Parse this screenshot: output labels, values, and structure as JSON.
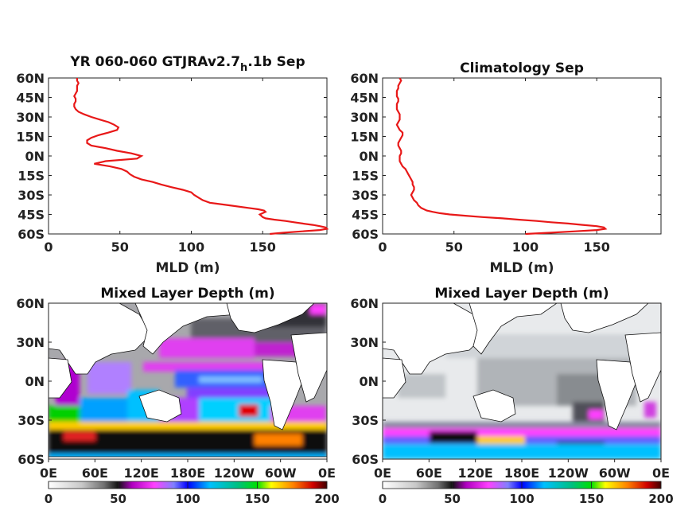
{
  "chart_data": [
    {
      "type": "line",
      "title": "YR 060-060 GTJRAv2.7",
      "title_sub": "h",
      "title_suffix": ".1b Sep",
      "xlabel": "MLD (m)",
      "ylabel": "",
      "xlim": [
        0,
        195
      ],
      "ylim": [
        -60,
        60
      ],
      "xticks": [
        "0",
        "50",
        "100",
        "150"
      ],
      "yticks": [
        "60N",
        "45N",
        "30N",
        "15N",
        "0N",
        "15S",
        "30S",
        "45S",
        "60S"
      ],
      "line_color": "#e81818",
      "series": [
        {
          "lat": [
            -60,
            -59,
            -58,
            -57,
            -56,
            -55,
            -54,
            -53,
            -52,
            -51,
            -50,
            -49,
            -48,
            -47,
            -46,
            -45,
            -44,
            -43,
            -42,
            -41,
            -40,
            -38,
            -36,
            -34,
            -32,
            -30,
            -28,
            -26,
            -24,
            -22,
            -20,
            -18,
            -16,
            -14,
            -12,
            -10,
            -8,
            -6,
            -4,
            -2,
            0,
            2,
            4,
            6,
            8,
            10,
            12,
            14,
            16,
            18,
            20,
            22,
            24,
            26,
            28,
            30,
            32,
            34,
            36,
            38,
            40,
            42,
            44,
            46,
            48,
            50,
            52,
            54,
            56,
            58,
            60
          ],
          "values": [
            155,
            165,
            178,
            190,
            195,
            194,
            190,
            185,
            178,
            172,
            166,
            158,
            152,
            150,
            149,
            148,
            150,
            152,
            151,
            147,
            140,
            127,
            113,
            108,
            105,
            102,
            100,
            94,
            86,
            79,
            73,
            65,
            60,
            57,
            55,
            51,
            43,
            32,
            40,
            62,
            65,
            58,
            48,
            40,
            30,
            27,
            27,
            30,
            35,
            42,
            48,
            49,
            46,
            42,
            36,
            30,
            25,
            21,
            19,
            18,
            18,
            19,
            19,
            18,
            19,
            20,
            20,
            20,
            21,
            20,
            20
          ]
        }
      ]
    },
    {
      "type": "line",
      "title": "Climatology Sep",
      "xlabel": "MLD (m)",
      "ylabel": "",
      "xlim": [
        0,
        195
      ],
      "ylim": [
        -60,
        60
      ],
      "xticks": [
        "0",
        "50",
        "100",
        "150"
      ],
      "yticks": [
        "60N",
        "45N",
        "30N",
        "15N",
        "0N",
        "15S",
        "30S",
        "45S",
        "60S"
      ],
      "line_color": "#e81818",
      "series": [
        {
          "lat": [
            -60,
            -59,
            -58,
            -57,
            -56,
            -55,
            -54,
            -53,
            -52,
            -51,
            -50,
            -49,
            -48,
            -47,
            -46,
            -45,
            -44,
            -43,
            -42,
            -41,
            -40,
            -38,
            -36,
            -34,
            -32,
            -30,
            -28,
            -26,
            -24,
            -22,
            -20,
            -18,
            -16,
            -14,
            -12,
            -10,
            -8,
            -6,
            -4,
            -2,
            0,
            2,
            4,
            6,
            8,
            10,
            12,
            14,
            16,
            18,
            20,
            22,
            24,
            26,
            28,
            30,
            32,
            34,
            36,
            38,
            40,
            42,
            44,
            46,
            48,
            50,
            52,
            54,
            56,
            58,
            60
          ],
          "values": [
            100,
            118,
            135,
            150,
            156,
            155,
            150,
            140,
            130,
            118,
            108,
            95,
            84,
            70,
            58,
            47,
            40,
            35,
            31,
            29,
            27,
            25,
            24,
            22,
            21,
            20,
            21,
            22,
            22,
            21,
            21,
            20,
            19,
            18,
            17,
            16,
            14,
            13,
            12,
            12,
            12,
            13,
            13,
            12,
            11,
            11,
            12,
            13,
            14,
            14,
            12,
            11,
            10,
            11,
            12,
            12,
            12,
            11,
            10,
            10,
            10,
            11,
            11,
            10,
            10,
            10,
            11,
            11,
            12,
            13,
            12
          ]
        }
      ]
    },
    {
      "type": "heatmap",
      "title": "Mixed Layer Depth (m)",
      "xticks": [
        "0E",
        "60E",
        "120E",
        "180E",
        "120W",
        "60W",
        "0E"
      ],
      "yticks": [
        "60N",
        "30N",
        "0N",
        "30S",
        "60S"
      ],
      "colorbar_ticks": [
        "0",
        "50",
        "100",
        "150",
        "200"
      ],
      "colorbar_range": [
        0,
        200
      ]
    },
    {
      "type": "heatmap",
      "title": "Mixed Layer Depth (m)",
      "xticks": [
        "0E",
        "60E",
        "120E",
        "180E",
        "120W",
        "60W",
        "0E"
      ],
      "yticks": [
        "60N",
        "30N",
        "0N",
        "30S",
        "60S"
      ],
      "colorbar_ticks": [
        "0",
        "50",
        "100",
        "150",
        "200"
      ],
      "colorbar_range": [
        0,
        200
      ]
    }
  ]
}
